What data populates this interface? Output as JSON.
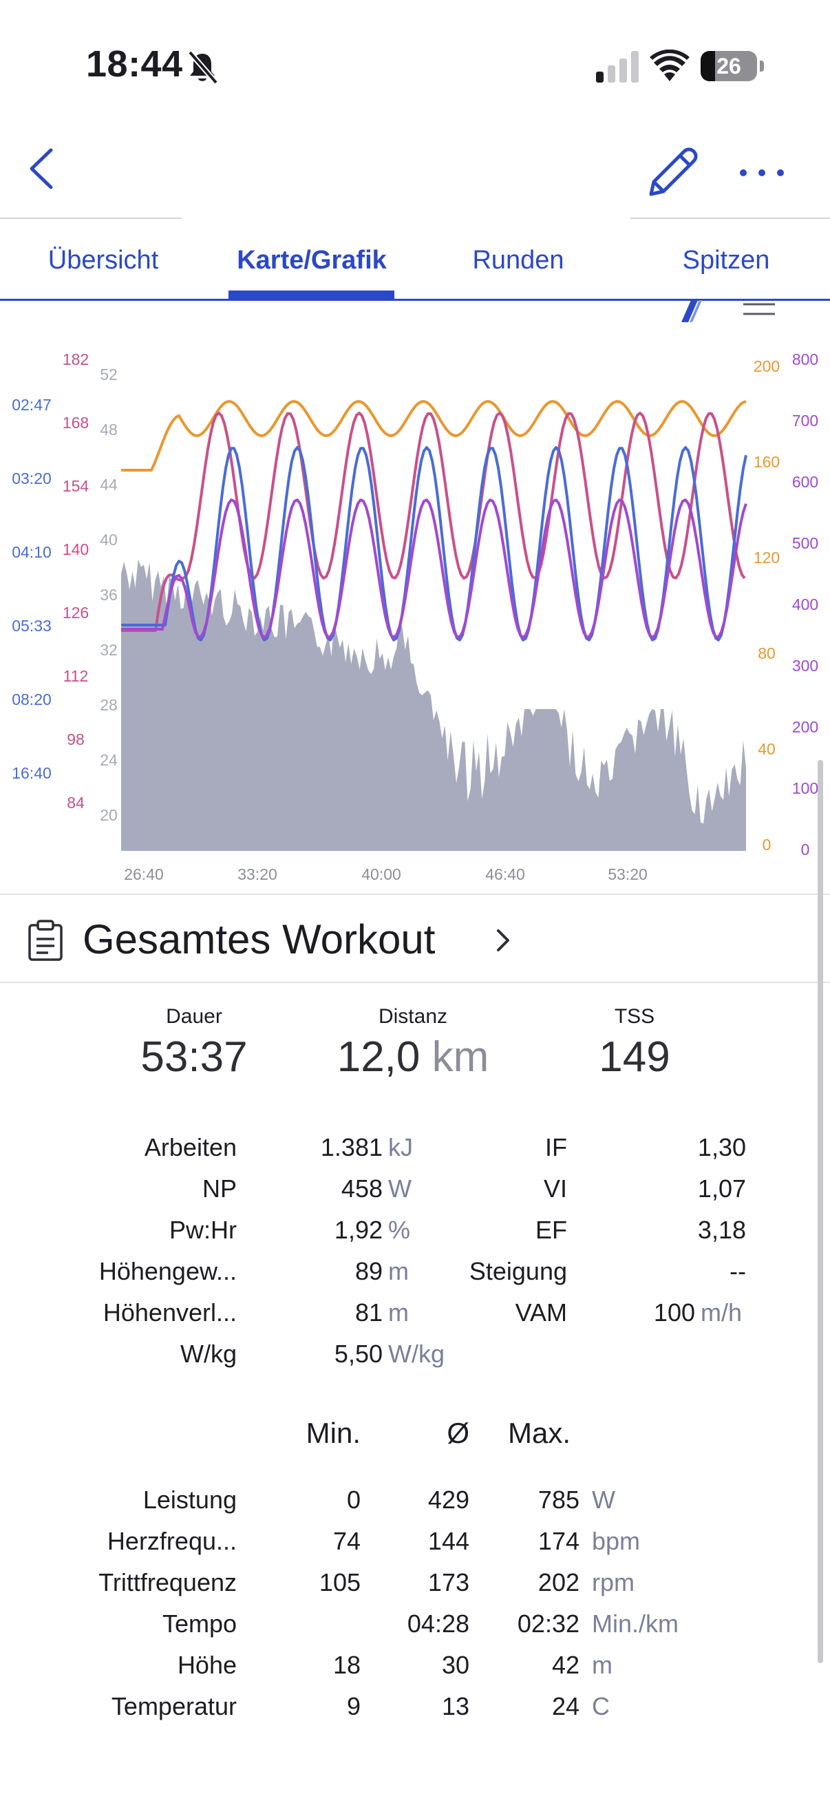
{
  "status_bar": {
    "time": "18:44",
    "battery": "26",
    "battery_level": 0.26
  },
  "nav": {
    "back_icon": "chevron-left-icon",
    "edit_icon": "pencil-icon",
    "more_icon": "ellipsis-icon"
  },
  "tabs": [
    {
      "label": "Übersicht",
      "active": false
    },
    {
      "label": "Karte/Grafik",
      "active": true
    },
    {
      "label": "Runden",
      "active": false
    },
    {
      "label": "Spitzen",
      "active": false
    }
  ],
  "chart_data": {
    "type": "line",
    "x_ticks": [
      "26:40",
      "33:20",
      "40:00",
      "46:40",
      "53:20"
    ],
    "axes": {
      "pace_min_km": {
        "ticks": [
          "02:47",
          "03:20",
          "04:10",
          "05:33",
          "08:20",
          "16:40"
        ],
        "color": "#4a6cd4"
      },
      "heart_rate_bpm": {
        "ticks": [
          "182",
          "168",
          "154",
          "140",
          "126",
          "112",
          "98",
          "84"
        ],
        "color": "#c9508a"
      },
      "elevation_m": {
        "ticks": [
          "52",
          "48",
          "44",
          "40",
          "36",
          "32",
          "28",
          "24",
          "20"
        ],
        "color": "#a7a9b6"
      },
      "cadence_rpm": {
        "ticks": [
          "200",
          "160",
          "120",
          "80",
          "40",
          "0"
        ],
        "color": "#e8982f"
      },
      "power_w": {
        "ticks": [
          "800",
          "700",
          "600",
          "500",
          "400",
          "300",
          "200",
          "100",
          "0"
        ],
        "color": "#a04ad0"
      }
    },
    "series": [
      {
        "name": "Höhe",
        "color": "#a7abbd",
        "type": "area"
      },
      {
        "name": "Trittfrequenz",
        "color": "#e8982f"
      },
      {
        "name": "Herzfrequenz",
        "color": "#c9508a"
      },
      {
        "name": "Tempo",
        "color": "#4a6cd4"
      },
      {
        "name": "Leistung",
        "color": "#a04ad0"
      }
    ]
  },
  "workout": {
    "title": "Gesamtes Workout"
  },
  "summary": [
    {
      "label": "Dauer",
      "value": "53:37",
      "unit": ""
    },
    {
      "label": "Distanz",
      "value": "12,0",
      "unit": "km"
    },
    {
      "label": "TSS",
      "value": "149",
      "unit": ""
    }
  ],
  "details": [
    {
      "l_label": "Arbeiten",
      "l_value": "1.381",
      "l_unit": "kJ",
      "r_label": "IF",
      "r_value": "1,30",
      "r_unit": ""
    },
    {
      "l_label": "NP",
      "l_value": "458",
      "l_unit": "W",
      "r_label": "VI",
      "r_value": "1,07",
      "r_unit": ""
    },
    {
      "l_label": "Pw:Hr",
      "l_value": "1,92",
      "l_unit": "%",
      "r_label": "EF",
      "r_value": "3,18",
      "r_unit": ""
    },
    {
      "l_label": "Höhengew...",
      "l_value": "89",
      "l_unit": "m",
      "r_label": "Steigung",
      "r_value": "--",
      "r_unit": ""
    },
    {
      "l_label": "Höhenverl...",
      "l_value": "81",
      "l_unit": "m",
      "r_label": "VAM",
      "r_value": "100",
      "r_unit": "m/h"
    },
    {
      "l_label": "W/kg",
      "l_value": "5,50",
      "l_unit": "W/kg",
      "r_label": "",
      "r_value": "",
      "r_unit": ""
    }
  ],
  "table": {
    "headers": {
      "min": "Min.",
      "avg": "Ø",
      "max": "Max."
    },
    "rows": [
      {
        "label": "Leistung",
        "min": "0",
        "avg": "429",
        "max": "785",
        "unit": "W"
      },
      {
        "label": "Herzfrequ...",
        "min": "74",
        "avg": "144",
        "max": "174",
        "unit": "bpm"
      },
      {
        "label": "Trittfrequenz",
        "min": "105",
        "avg": "173",
        "max": "202",
        "unit": "rpm"
      },
      {
        "label": "Tempo",
        "min": "",
        "avg": "04:28",
        "max": "02:32",
        "unit": "Min./km"
      },
      {
        "label": "Höhe",
        "min": "18",
        "avg": "30",
        "max": "42",
        "unit": "m"
      },
      {
        "label": "Temperatur",
        "min": "9",
        "avg": "13",
        "max": "24",
        "unit": "C"
      }
    ]
  }
}
